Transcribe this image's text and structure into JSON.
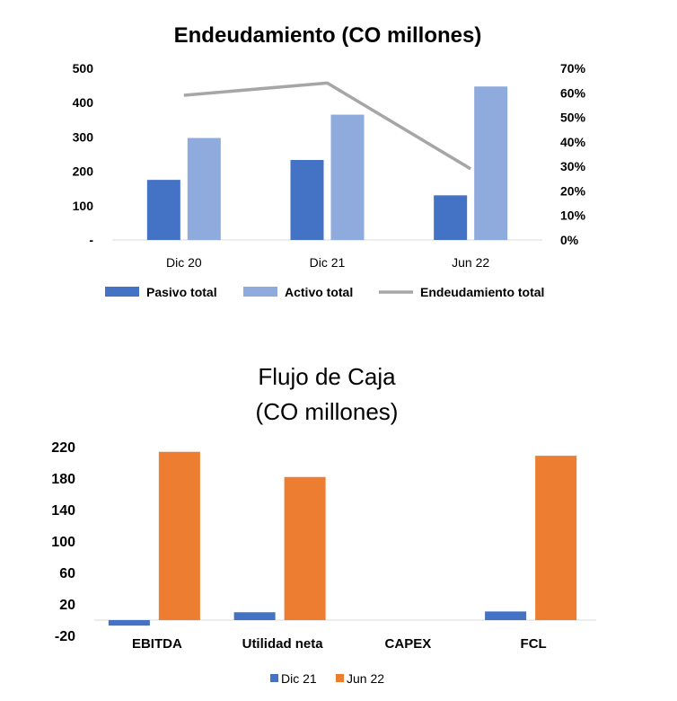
{
  "chart_data": [
    {
      "type": "bar",
      "title": "Endeudamiento (CO millones)",
      "categories": [
        "Dic 20",
        "Dic 21",
        "Jun 22"
      ],
      "series": [
        {
          "name": "Pasivo total",
          "type": "bar",
          "axis": "left",
          "color": "#4472C4",
          "values": [
            175,
            233,
            130
          ]
        },
        {
          "name": "Activo total",
          "type": "bar",
          "axis": "left",
          "color": "#8FAADC",
          "values": [
            297,
            365,
            447
          ]
        },
        {
          "name": "Endeudamiento total",
          "type": "line",
          "axis": "right",
          "color": "#A6A6A6",
          "values": [
            0.59,
            0.64,
            0.29
          ]
        }
      ],
      "ylim_left": [
        0,
        500
      ],
      "ylim_right": [
        0,
        0.7
      ],
      "yticks_left": [
        "500",
        "400",
        "300",
        "200",
        "100",
        "-"
      ],
      "yticks_right": [
        "70%",
        "60%",
        "50%",
        "40%",
        "30%",
        "20%",
        "10%",
        "0%"
      ],
      "legend_position": "bottom",
      "grid": false
    },
    {
      "type": "bar",
      "title_lines": [
        "Flujo de Caja",
        "(CO millones)"
      ],
      "categories": [
        "EBITDA",
        "Utilidad neta",
        "CAPEX",
        "FCL"
      ],
      "series": [
        {
          "name": "Dic 21",
          "color": "#4472C4",
          "values": [
            -7,
            10,
            0,
            11
          ]
        },
        {
          "name": "Jun 22",
          "color": "#ED7D31",
          "values": [
            214,
            182,
            0,
            209
          ]
        }
      ],
      "ylim": [
        -20,
        230
      ],
      "yticks": [
        "220",
        "180",
        "140",
        "100",
        "60",
        "20",
        "-20"
      ],
      "legend_position": "bottom",
      "grid": false
    }
  ]
}
